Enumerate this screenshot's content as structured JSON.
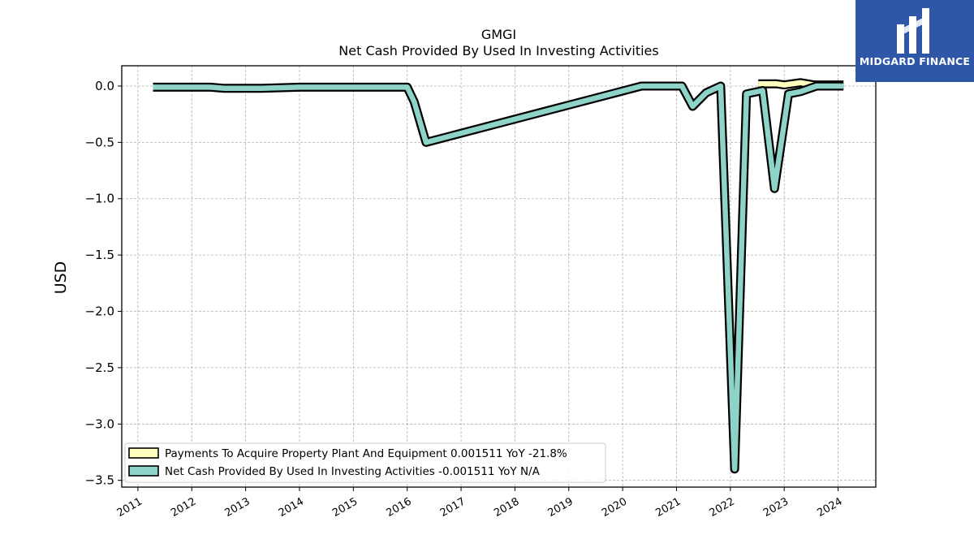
{
  "chart_data": {
    "type": "line",
    "title": "GMGI",
    "subtitle": "Net Cash Provided By Used In Investing Activities",
    "xlabel": "",
    "ylabel": "USD",
    "xlim": [
      2010.7,
      2024.7
    ],
    "ylim": [
      -3.56,
      0.18
    ],
    "x_ticks": [
      "2011",
      "2012",
      "2013",
      "2014",
      "2015",
      "2016",
      "2017",
      "2018",
      "2019",
      "2020",
      "2021",
      "2022",
      "2023",
      "2024"
    ],
    "y_ticks": [
      "0.0",
      "−0.5",
      "−1.0",
      "−1.5",
      "−2.0",
      "−2.5",
      "−3.0",
      "−3.5"
    ],
    "y_tick_values": [
      0.0,
      -0.5,
      -1.0,
      -1.5,
      -2.0,
      -2.5,
      -3.0,
      -3.5
    ],
    "grid": true,
    "legend_position": "bottom-left",
    "series": [
      {
        "name": "Payments To Acquire Property Plant And Equipment  0.001511 YoY -21.8%",
        "color": "#ffffbf",
        "x": [
          2022.52,
          2022.85,
          2023.0,
          2023.3,
          2023.55,
          2024.1
        ],
        "y": [
          0.02,
          0.02,
          0.01,
          0.03,
          0.01,
          0.01
        ]
      },
      {
        "name": "Net Cash Provided By Used In Investing Activities  -0.001511 YoY N/A",
        "color": "#8dd3c7",
        "x": [
          2011.28,
          2012.0,
          2012.35,
          2012.6,
          2013.3,
          2014.0,
          2015.0,
          2015.85,
          2016.0,
          2016.13,
          2016.35,
          2020.35,
          2021.1,
          2021.3,
          2021.55,
          2021.82,
          2022.08,
          2022.3,
          2022.6,
          2022.82,
          2023.08,
          2023.3,
          2023.6,
          2024.1
        ],
        "y": [
          -0.01,
          -0.01,
          -0.01,
          -0.02,
          -0.02,
          -0.01,
          -0.01,
          -0.01,
          -0.01,
          -0.14,
          -0.5,
          0.0,
          0.0,
          -0.18,
          -0.06,
          0.0,
          -3.4,
          -0.07,
          -0.04,
          -0.91,
          -0.07,
          -0.05,
          0.0,
          0.0
        ]
      }
    ]
  },
  "logo": {
    "text": "MIDGARD FINANCE"
  }
}
